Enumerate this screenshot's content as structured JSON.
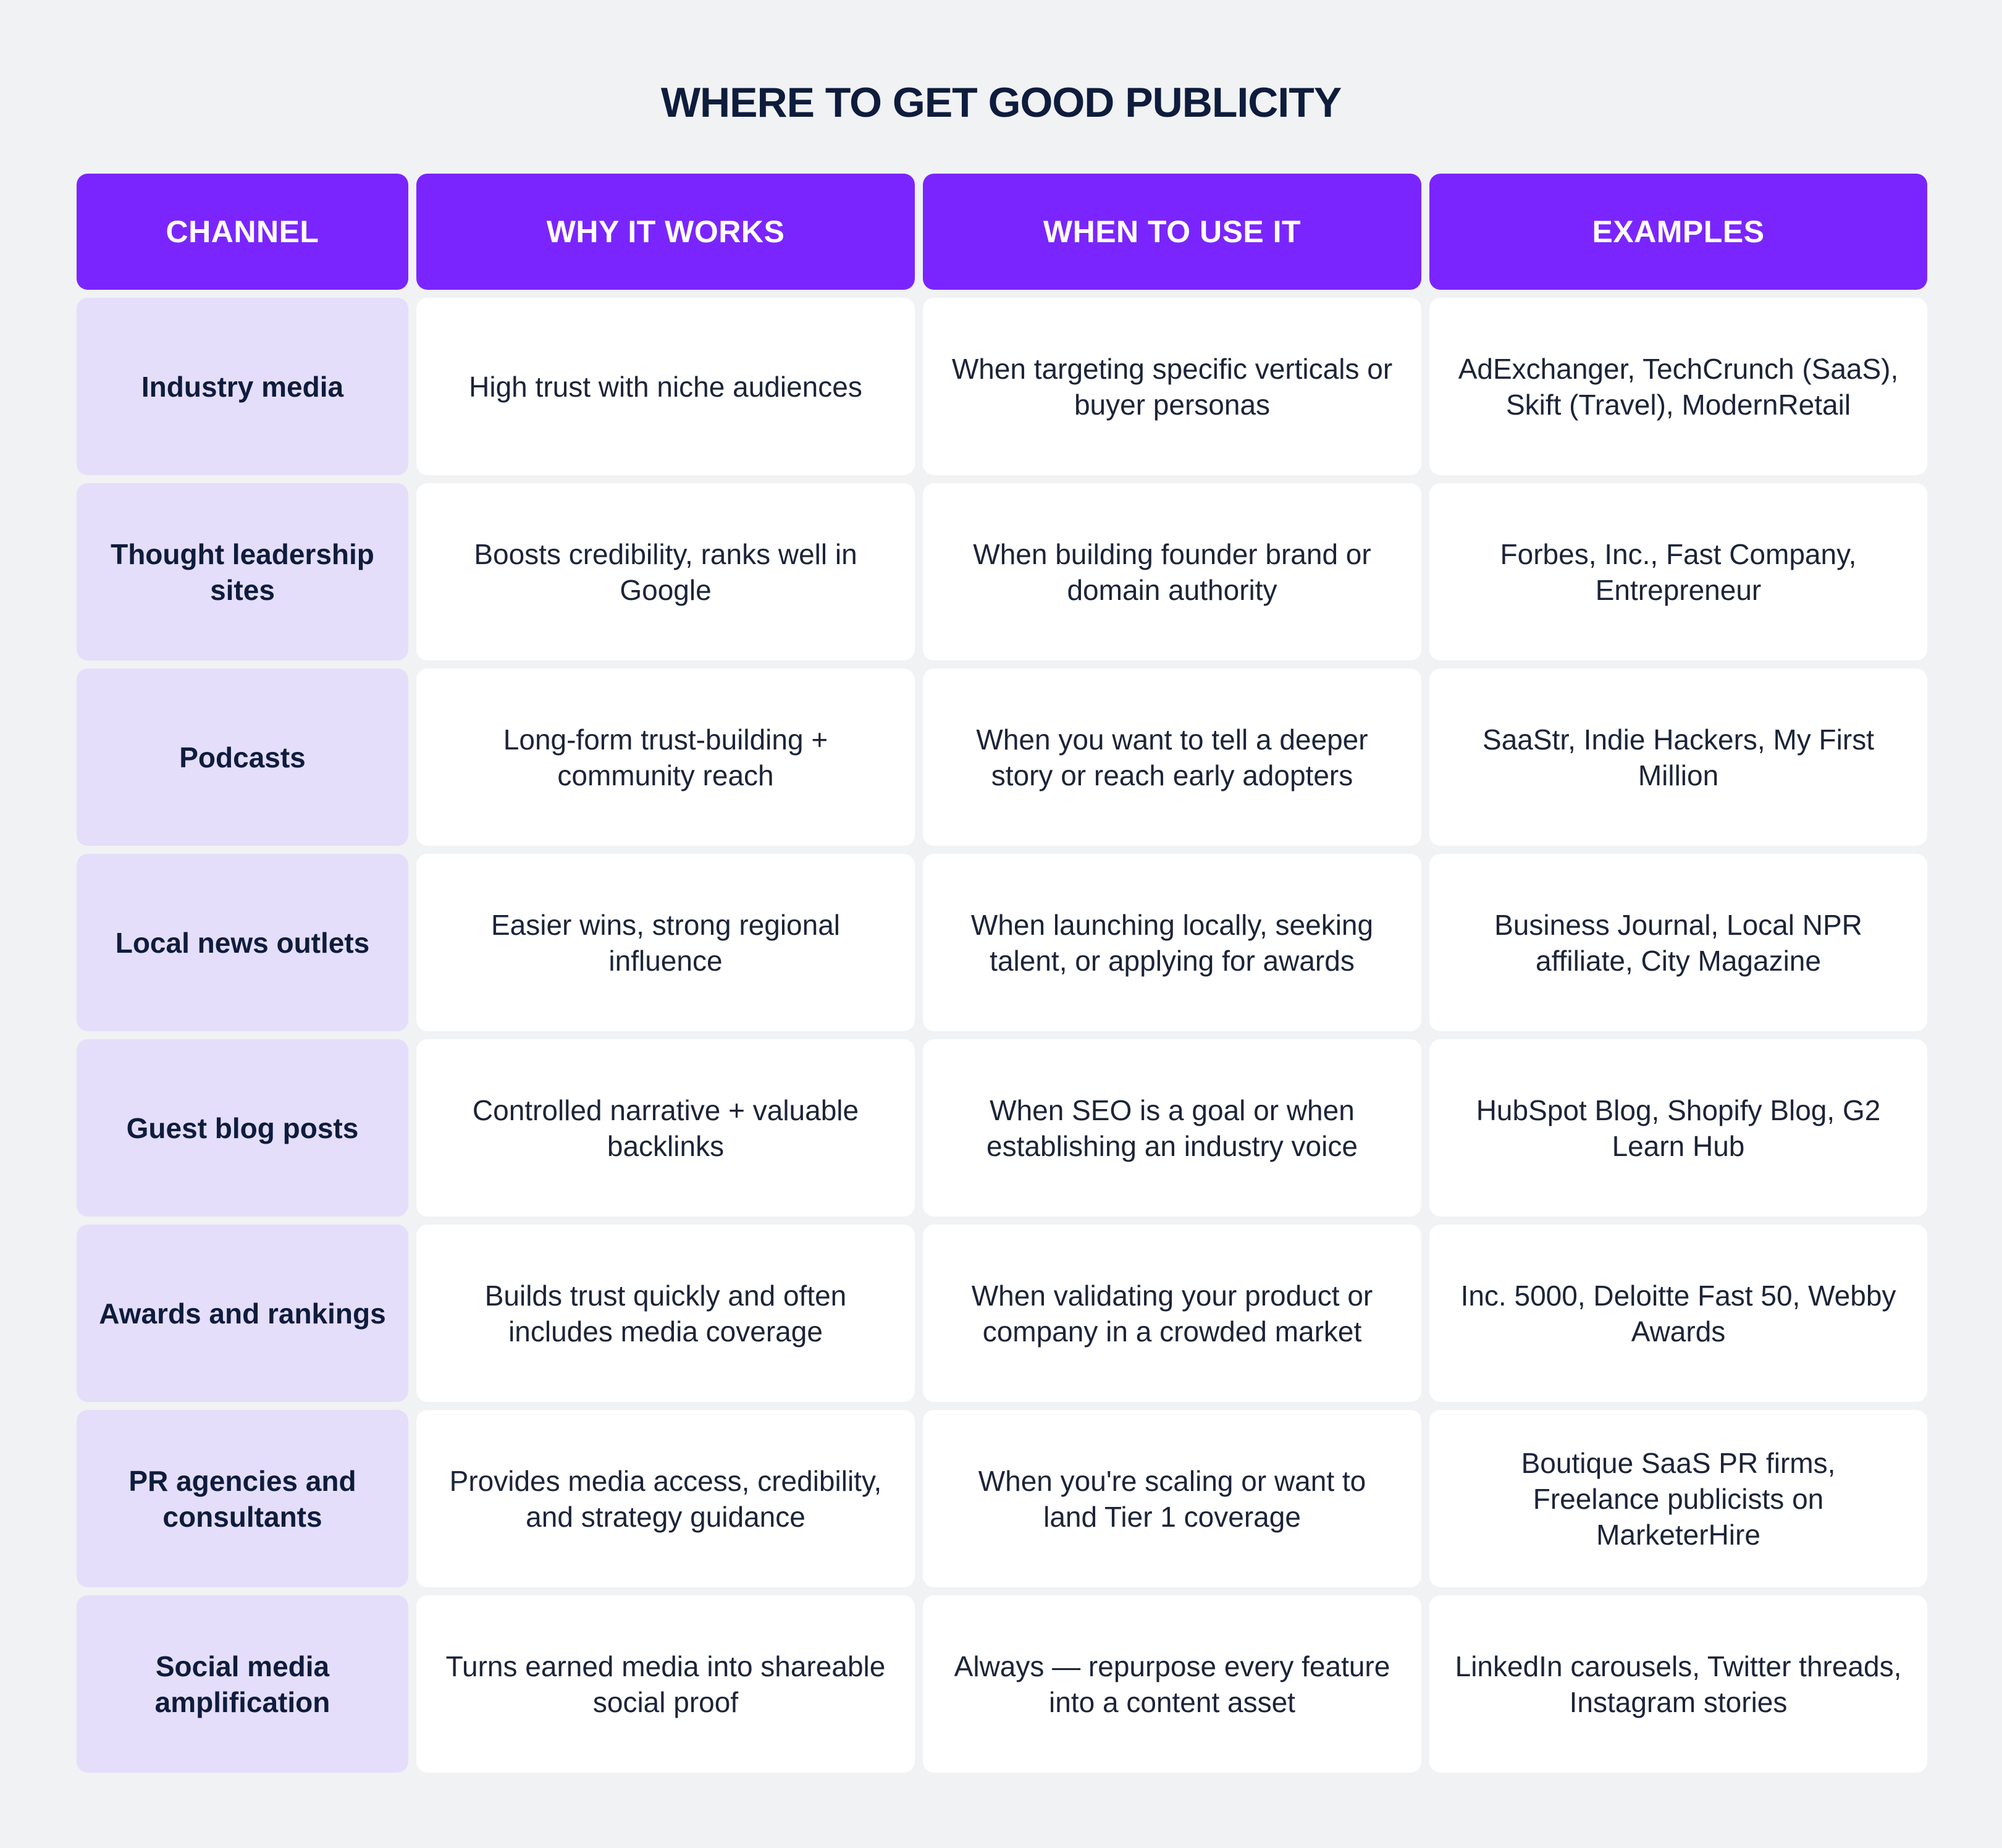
{
  "title": "WHERE TO GET GOOD PUBLICITY",
  "colors": {
    "background": "#f1f2f4",
    "header": "#7b25fe",
    "channel_cell": "#e4defa",
    "body_cell": "#ffffff",
    "text_dark": "#0e1c3d"
  },
  "table": {
    "headers": [
      "CHANNEL",
      "WHY IT WORKS",
      "WHEN TO USE IT",
      "EXAMPLES"
    ],
    "rows": [
      {
        "channel": "Industry media",
        "why": "High trust with niche audiences",
        "when": "When targeting specific verticals or buyer personas",
        "examples": "AdExchanger, TechCrunch (SaaS), Skift (Travel), ModernRetail"
      },
      {
        "channel": "Thought leadership sites",
        "why": "Boosts credibility, ranks well in Google",
        "when": "When building founder brand or domain authority",
        "examples": "Forbes, Inc., Fast Company, Entrepreneur"
      },
      {
        "channel": "Podcasts",
        "why": "Long-form trust-building + community reach",
        "when": "When you want to tell a deeper story or reach early adopters",
        "examples": "SaaStr, Indie Hackers, My First Million"
      },
      {
        "channel": "Local news outlets",
        "why": "Easier wins, strong regional influence",
        "when": "When launching locally, seeking talent, or applying for awards",
        "examples": "Business Journal, Local NPR affiliate, City Magazine"
      },
      {
        "channel": "Guest blog posts",
        "why": "Controlled narrative + valuable backlinks",
        "when": "When SEO is a goal or when establishing an industry voice",
        "examples": "HubSpot Blog, Shopify Blog, G2 Learn Hub"
      },
      {
        "channel": "Awards and rankings",
        "why": "Builds trust quickly and often includes media coverage",
        "when": "When validating your product or company in a crowded market",
        "examples": "Inc. 5000, Deloitte Fast 50, Webby Awards"
      },
      {
        "channel": "PR agencies and consultants",
        "why": "Provides media access, credibility, and strategy guidance",
        "when": "When you're scaling or want to land Tier 1 coverage",
        "examples": "Boutique SaaS PR firms, Freelance publicists on MarketerHire"
      },
      {
        "channel": "Social media amplification",
        "why": "Turns earned media into shareable social proof",
        "when": "Always — repurpose every feature into a content asset",
        "examples": "LinkedIn carousels, Twitter threads, Instagram stories"
      }
    ]
  }
}
